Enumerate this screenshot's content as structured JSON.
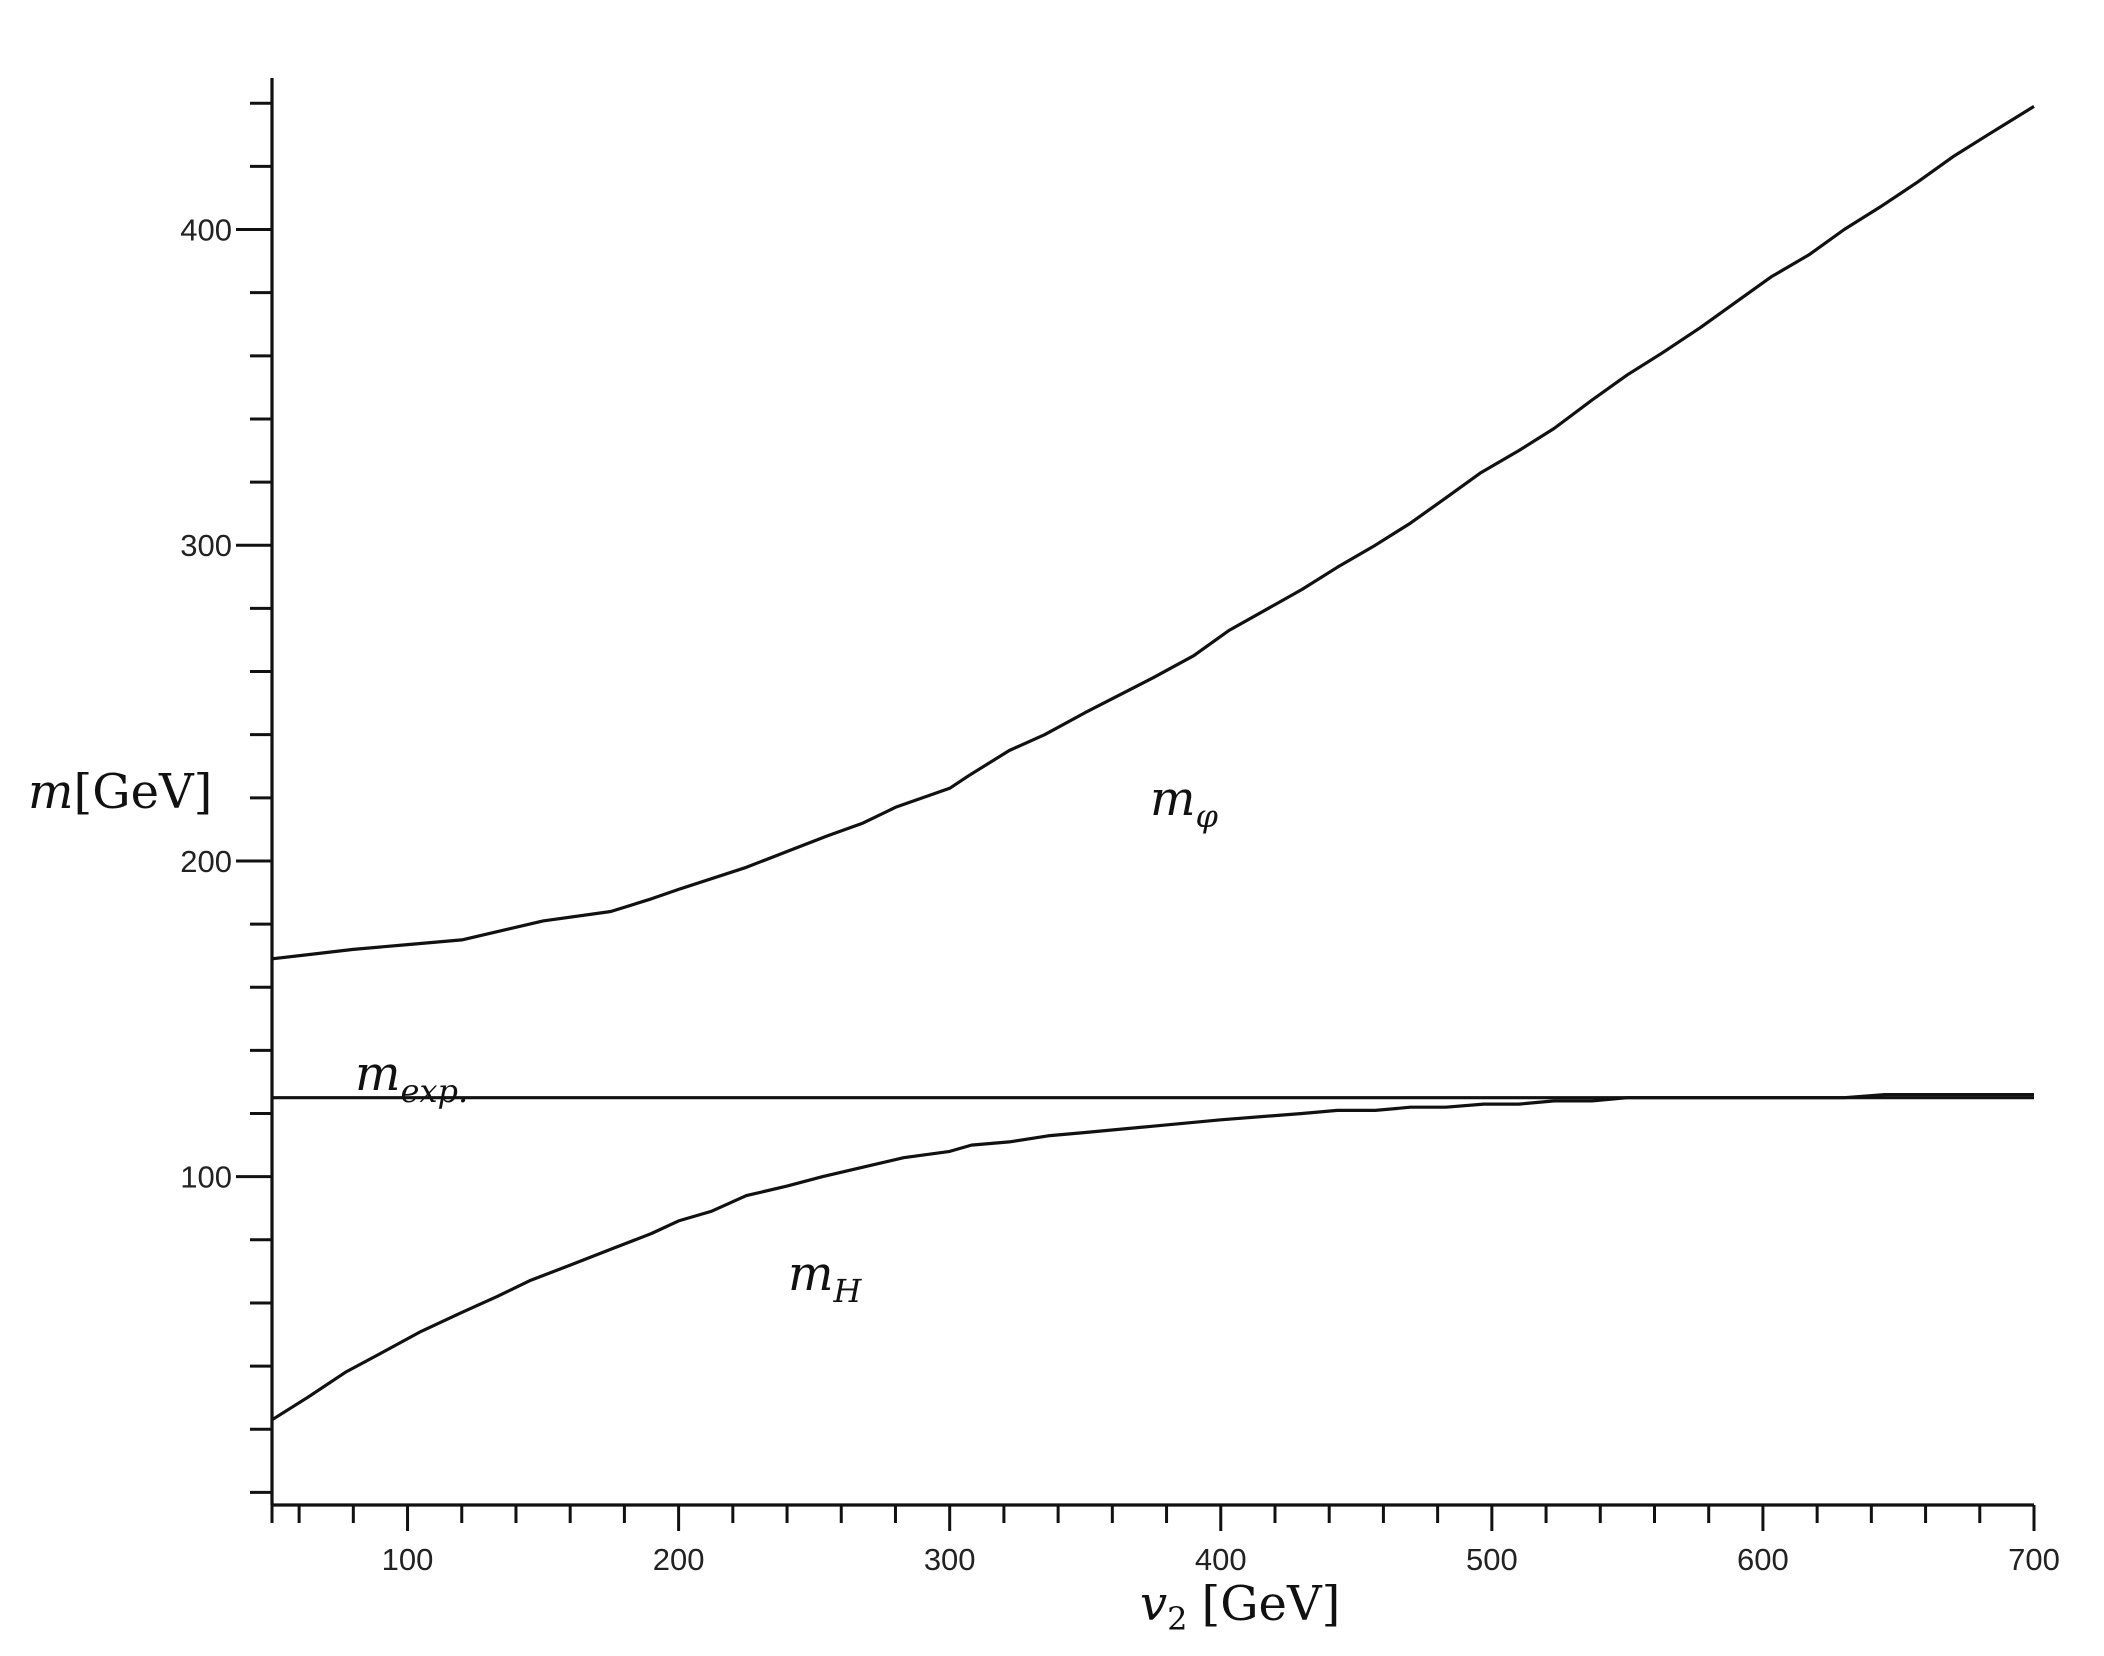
{
  "chart_data": {
    "type": "line",
    "x_axis": {
      "label_var": "v",
      "label_sub": "2",
      "label_unit": "[GeV]",
      "range": [
        50,
        700
      ],
      "major_ticks": [
        100,
        200,
        300,
        400,
        500,
        600,
        700
      ],
      "tick_labels": [
        "100",
        "200",
        "300",
        "400",
        "500",
        "600",
        "700"
      ],
      "minor_step": 20
    },
    "y_axis": {
      "label_var": "m",
      "label_unit": "[GeV]",
      "range": [
        -4,
        448
      ],
      "major_ticks": [
        100,
        200,
        300,
        400
      ],
      "tick_labels": [
        "100",
        "200",
        "300",
        "400"
      ],
      "minor_step": 20
    },
    "grid": false,
    "series": [
      {
        "name": "m_φ",
        "label_base": "m",
        "label_sub": "φ",
        "points": [
          [
            50,
            169
          ],
          [
            65,
            170.5
          ],
          [
            80,
            172
          ],
          [
            100,
            173.5
          ],
          [
            120,
            175
          ],
          [
            135,
            178
          ],
          [
            150,
            181
          ],
          [
            175,
            184
          ],
          [
            190,
            188
          ],
          [
            200,
            191
          ],
          [
            225,
            198
          ],
          [
            240,
            203
          ],
          [
            255,
            208
          ],
          [
            268,
            212
          ],
          [
            280,
            217
          ],
          [
            300,
            223
          ],
          [
            307,
            227
          ],
          [
            322,
            235
          ],
          [
            335,
            240
          ],
          [
            350,
            247
          ],
          [
            375,
            258
          ],
          [
            390,
            265
          ],
          [
            403,
            273
          ],
          [
            430,
            286
          ],
          [
            443,
            293
          ],
          [
            457,
            300
          ],
          [
            470,
            307
          ],
          [
            483,
            315
          ],
          [
            496,
            323
          ],
          [
            510,
            330
          ],
          [
            523,
            337
          ],
          [
            537,
            346
          ],
          [
            550,
            354
          ],
          [
            563,
            361
          ],
          [
            577,
            369
          ],
          [
            590,
            377
          ],
          [
            603,
            385
          ],
          [
            617,
            392
          ],
          [
            630,
            400
          ],
          [
            643,
            407
          ],
          [
            657,
            415
          ],
          [
            670,
            423
          ],
          [
            683,
            430
          ],
          [
            700,
            439
          ]
        ]
      },
      {
        "name": "m_H",
        "label_base": "m",
        "label_sub": "H",
        "points": [
          [
            50,
            23
          ],
          [
            63,
            30
          ],
          [
            77,
            38
          ],
          [
            90,
            44
          ],
          [
            105,
            51
          ],
          [
            120,
            57
          ],
          [
            133,
            62
          ],
          [
            145,
            67
          ],
          [
            160,
            72
          ],
          [
            175,
            77
          ],
          [
            190,
            82
          ],
          [
            200,
            86
          ],
          [
            212,
            89
          ],
          [
            225,
            94
          ],
          [
            240,
            97
          ],
          [
            253,
            100
          ],
          [
            268,
            103
          ],
          [
            283,
            106
          ],
          [
            300,
            108
          ],
          [
            308,
            110
          ],
          [
            322,
            111
          ],
          [
            337,
            113
          ],
          [
            350,
            114
          ],
          [
            375,
            116
          ],
          [
            400,
            118
          ],
          [
            430,
            120
          ],
          [
            443,
            121
          ],
          [
            457,
            121
          ],
          [
            470,
            122
          ],
          [
            483,
            122
          ],
          [
            497,
            123
          ],
          [
            510,
            123
          ],
          [
            523,
            124
          ],
          [
            537,
            124
          ],
          [
            550,
            125
          ],
          [
            577,
            125
          ],
          [
            590,
            125
          ],
          [
            600,
            125
          ],
          [
            630,
            125
          ],
          [
            645,
            126
          ],
          [
            700,
            126
          ]
        ]
      },
      {
        "name": "m_exp.",
        "label_base": "m",
        "label_sub": "exp.",
        "points": [
          [
            50,
            125
          ],
          [
            700,
            125
          ]
        ]
      }
    ]
  }
}
